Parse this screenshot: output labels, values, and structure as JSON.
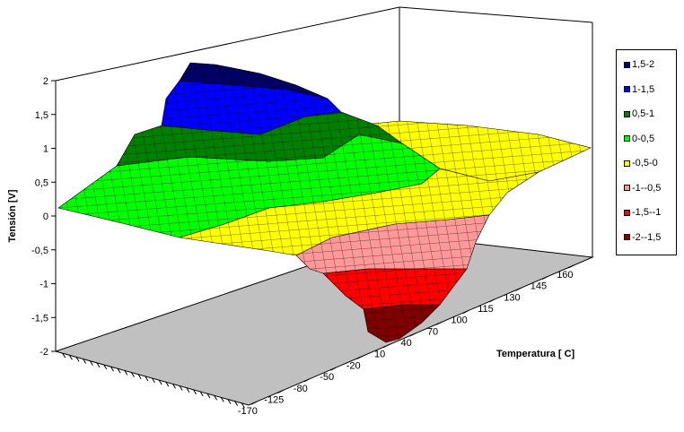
{
  "chart_data": {
    "type": "surface",
    "zlabel": "Tensión [V]",
    "xlabel": "Temperatura [ C]",
    "zlim": [
      -2,
      2
    ],
    "z_ticks": [
      "-2",
      "-1,5",
      "-1",
      "-0,5",
      "0",
      "0,5",
      "1",
      "1,5",
      "2"
    ],
    "x_ticks": [
      "-170",
      "-125",
      "-80",
      "-50",
      "-20",
      "10",
      "40",
      "70",
      "100",
      "115",
      "130",
      "145",
      "160"
    ],
    "legend_position": "right",
    "legend": [
      {
        "label": "1,5-2",
        "color": "#000066"
      },
      {
        "label": "1-1,5",
        "color": "#0000ff"
      },
      {
        "label": "0,5-1",
        "color": "#008000"
      },
      {
        "label": "0-0,5",
        "color": "#00ff00"
      },
      {
        "label": "-0,5-0",
        "color": "#ffff00"
      },
      {
        "label": "-1--0,5",
        "color": "#ff9999"
      },
      {
        "label": "-1,5--1",
        "color": "#ff0000"
      },
      {
        "label": "-2--1,5",
        "color": "#800000"
      }
    ],
    "floor_color": "#c0c0c0"
  }
}
